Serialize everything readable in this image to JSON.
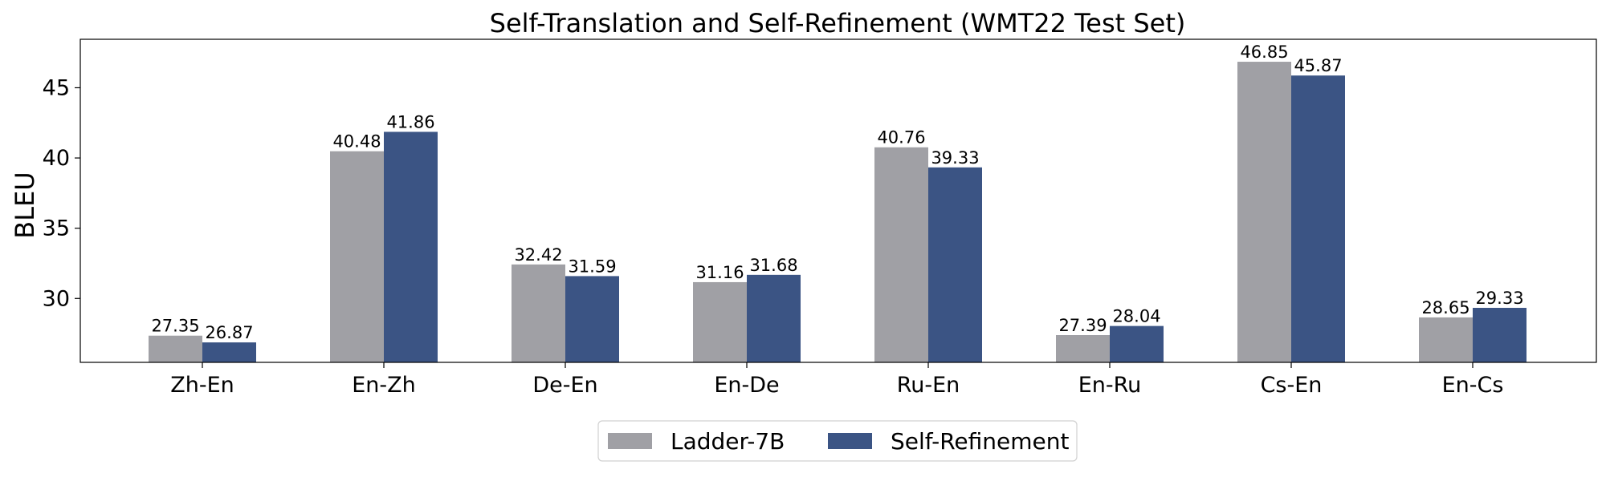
{
  "chart_data": {
    "type": "bar",
    "title": "Self-Translation and Self-Refinement (WMT22 Test Set)",
    "xlabel": "",
    "ylabel": "BLEU",
    "categories": [
      "Zh-En",
      "En-Zh",
      "De-En",
      "En-De",
      "Ru-En",
      "En-Ru",
      "Cs-En",
      "En-Cs"
    ],
    "series": [
      {
        "name": "Ladder-7B",
        "color": "#a0a0a5",
        "values": [
          27.35,
          40.48,
          32.42,
          31.16,
          40.76,
          27.39,
          46.85,
          28.65
        ],
        "labels": [
          "27.35",
          "40.48",
          "32.42",
          "31.16",
          "40.76",
          "27.39",
          "46.85",
          "28.65"
        ]
      },
      {
        "name": "Self-Refinement",
        "color": "#3b5484",
        "values": [
          26.87,
          41.86,
          31.59,
          31.68,
          39.33,
          28.04,
          45.87,
          29.33
        ],
        "labels": [
          "26.87",
          "41.86",
          "31.59",
          "31.68",
          "39.33",
          "28.04",
          "45.87",
          "29.33"
        ]
      }
    ],
    "ylim": [
      25.45,
      48.45
    ],
    "yticks": [
      30,
      35,
      40,
      45
    ],
    "ytick_labels": [
      "30",
      "35",
      "40",
      "45"
    ],
    "grid": false,
    "legend_position": "bottom-center"
  }
}
